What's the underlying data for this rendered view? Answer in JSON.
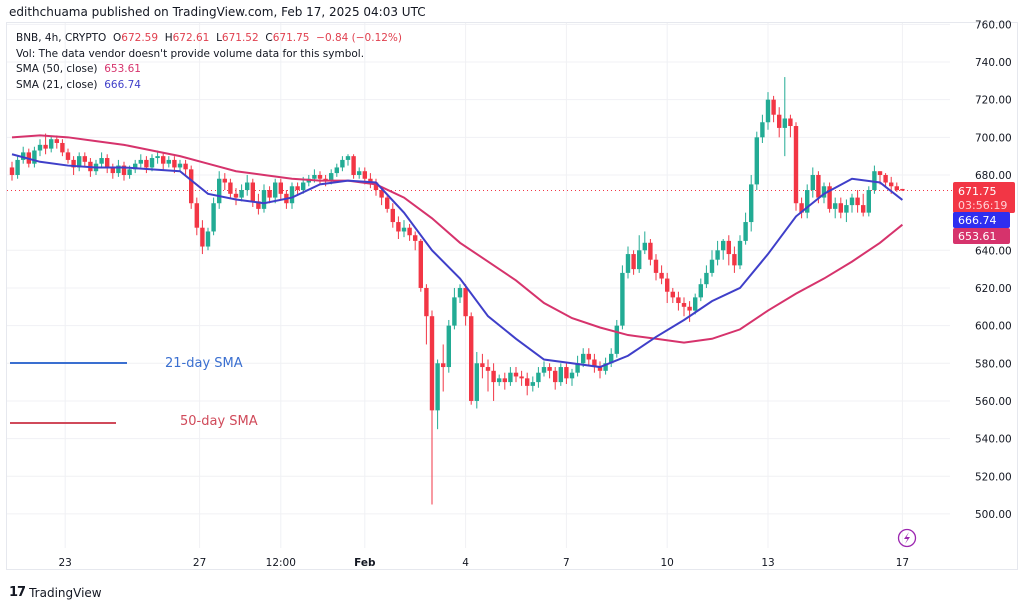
{
  "publisher_line": "edithchuama published on TradingView.com, Feb 17, 2025 04:03 UTC",
  "legend": {
    "symbol": "BNB, 4h, CRYPTO",
    "o_label": "O",
    "o_value": "672.59",
    "h_label": "H",
    "h_value": "672.61",
    "l_label": "L",
    "l_value": "671.52",
    "c_label": "C",
    "c_value": "671.75",
    "change": "−0.84 (−0.12%)",
    "vol_note": "Vol: The data vendor doesn't provide volume data for this symbol.",
    "sma50_label": "SMA (50, close)",
    "sma50_value": "653.61",
    "sma21_label": "SMA (21, close)",
    "sma21_value": "666.74"
  },
  "price_tags": {
    "last_price": "671.75",
    "countdown": "03:56:19",
    "sma21": "666.74",
    "sma50": "653.61"
  },
  "annotations": {
    "sma21_text": "21-day SMA",
    "sma50_text": "50-day SMA"
  },
  "footer": {
    "logo_text": "TradingView"
  },
  "colors": {
    "up": "#22ab94",
    "down": "#f23645",
    "sma21": "#3f3fc9",
    "sma50": "#d6336c",
    "ann21": "#3a6fd0",
    "ann50": "#d04a5a",
    "price_tag": "#f23645",
    "flash_icon": "#9c27b0"
  },
  "icons": {
    "flash": "lightning-icon",
    "logo": "tradingview-logo-icon"
  },
  "chart_data": {
    "type": "candlestick",
    "interval": "4h",
    "ylim": [
      490,
      760
    ],
    "y_ticks": [
      "760.00",
      "740.00",
      "720.00",
      "700.00",
      "680.00",
      "640.00",
      "620.00",
      "600.00",
      "580.00",
      "560.00",
      "540.00",
      "520.00",
      "500.00"
    ],
    "y_tick_values": [
      760,
      740,
      720,
      700,
      680,
      640,
      620,
      600,
      580,
      560,
      540,
      520,
      500
    ],
    "x_ticks": [
      "23",
      "27",
      "12:00",
      "Feb",
      "4",
      "7",
      "10",
      "13",
      "17"
    ],
    "x_tick_candle_index": [
      9.5,
      33.5,
      48,
      63,
      81,
      99,
      117,
      135,
      159
    ],
    "grid": true,
    "open": [
      684,
      680,
      688,
      692,
      686,
      693,
      696,
      694,
      699,
      697,
      692,
      688,
      684,
      690,
      687,
      682,
      686,
      689,
      684,
      681,
      685,
      680,
      683,
      686,
      688,
      684,
      689,
      690,
      686,
      688,
      684,
      686,
      683,
      665,
      652,
      642,
      650,
      665,
      678,
      676,
      670,
      668,
      672,
      676,
      666,
      662,
      672,
      668,
      676,
      670,
      665,
      674,
      672,
      676,
      678,
      680,
      678,
      677,
      681,
      684,
      688,
      690,
      680,
      682,
      678,
      676,
      672,
      668,
      662,
      655,
      650,
      652,
      648,
      645,
      620,
      605,
      555,
      580,
      578,
      600,
      615,
      620,
      605,
      560,
      580,
      578,
      576,
      570,
      572,
      570,
      575,
      573,
      572,
      568,
      570,
      575,
      578,
      576,
      570,
      578,
      572,
      575,
      580,
      585,
      582,
      578,
      576,
      580,
      585,
      600,
      628,
      638,
      630,
      640,
      644,
      635,
      628,
      625,
      618,
      615,
      612,
      610,
      608,
      615,
      622,
      628,
      635,
      640,
      645,
      638,
      632,
      645,
      655,
      675,
      700,
      708,
      720,
      712,
      705,
      710,
      706,
      665,
      660,
      672,
      680,
      668,
      674,
      662,
      665,
      660,
      664,
      668,
      664,
      660,
      672,
      682,
      680,
      676,
      674,
      672.59
    ],
    "high": [
      687,
      690,
      695,
      694,
      695,
      699,
      702,
      701,
      701,
      699,
      694,
      690,
      692,
      692,
      689,
      688,
      692,
      691,
      686,
      688,
      687,
      685,
      688,
      691,
      690,
      691,
      693,
      692,
      690,
      690,
      688,
      688,
      685,
      668,
      656,
      652,
      668,
      682,
      681,
      678,
      673,
      675,
      680,
      678,
      670,
      675,
      674,
      678,
      678,
      672,
      676,
      676,
      679,
      680,
      683,
      682,
      680,
      683,
      686,
      690,
      691,
      691,
      684,
      684,
      681,
      678,
      674,
      670,
      665,
      658,
      656,
      654,
      650,
      646,
      622,
      608,
      582,
      590,
      603,
      620,
      622,
      622,
      607,
      586,
      585,
      582,
      580,
      574,
      575,
      578,
      578,
      576,
      575,
      573,
      578,
      581,
      580,
      578,
      580,
      580,
      577,
      584,
      588,
      588,
      585,
      581,
      583,
      588,
      603,
      632,
      642,
      640,
      648,
      650,
      646,
      638,
      632,
      628,
      620,
      618,
      615,
      613,
      617,
      625,
      632,
      640,
      645,
      646,
      648,
      642,
      648,
      660,
      680,
      703,
      712,
      724,
      722,
      716,
      732,
      712,
      708,
      668,
      675,
      684,
      682,
      676,
      676,
      668,
      668,
      667,
      670,
      672,
      670,
      674,
      685,
      682,
      681,
      679,
      676,
      672.61
    ],
    "low": [
      677,
      678,
      686,
      684,
      684,
      690,
      691,
      692,
      694,
      690,
      686,
      680,
      682,
      684,
      679,
      680,
      684,
      681,
      678,
      679,
      677,
      678,
      681,
      684,
      681,
      682,
      686,
      683,
      684,
      681,
      682,
      680,
      662,
      648,
      638,
      640,
      648,
      662,
      672,
      668,
      664,
      666,
      669,
      663,
      659,
      660,
      665,
      665,
      667,
      662,
      662,
      669,
      670,
      674,
      676,
      675,
      674,
      675,
      679,
      682,
      685,
      678,
      678,
      675,
      673,
      669,
      664,
      660,
      652,
      646,
      647,
      645,
      640,
      618,
      590,
      505,
      545,
      565,
      575,
      598,
      612,
      600,
      558,
      556,
      572,
      565,
      560,
      568,
      566,
      568,
      570,
      568,
      563,
      565,
      567,
      573,
      572,
      566,
      568,
      569,
      568,
      573,
      578,
      579,
      575,
      572,
      574,
      578,
      583,
      598,
      625,
      627,
      628,
      638,
      632,
      624,
      622,
      612,
      612,
      608,
      605,
      602,
      606,
      613,
      620,
      626,
      632,
      635,
      632,
      628,
      630,
      643,
      650,
      672,
      697,
      704,
      708,
      700,
      690,
      700,
      661,
      657,
      657,
      668,
      665,
      665,
      660,
      657,
      657,
      655,
      660,
      660,
      658,
      658,
      670,
      675,
      674,
      670,
      671,
      671.52
    ],
    "close": [
      680,
      688,
      692,
      686,
      693,
      696,
      694,
      699,
      697,
      692,
      688,
      684,
      690,
      687,
      682,
      686,
      689,
      684,
      681,
      685,
      680,
      683,
      686,
      688,
      684,
      689,
      690,
      686,
      688,
      684,
      686,
      683,
      665,
      652,
      642,
      650,
      665,
      678,
      676,
      670,
      668,
      672,
      676,
      666,
      662,
      672,
      668,
      676,
      670,
      665,
      674,
      672,
      676,
      678,
      680,
      678,
      677,
      681,
      684,
      688,
      690,
      680,
      682,
      678,
      676,
      672,
      668,
      662,
      655,
      650,
      652,
      648,
      645,
      620,
      605,
      555,
      580,
      578,
      600,
      615,
      620,
      605,
      560,
      580,
      578,
      576,
      570,
      572,
      570,
      575,
      573,
      572,
      568,
      570,
      575,
      578,
      576,
      570,
      578,
      572,
      575,
      580,
      585,
      582,
      578,
      576,
      580,
      585,
      600,
      628,
      638,
      630,
      640,
      644,
      635,
      628,
      625,
      618,
      615,
      612,
      610,
      608,
      615,
      622,
      628,
      635,
      640,
      645,
      638,
      632,
      645,
      655,
      675,
      700,
      708,
      720,
      712,
      705,
      710,
      706,
      665,
      660,
      672,
      680,
      668,
      674,
      662,
      665,
      660,
      664,
      668,
      664,
      660,
      672,
      682,
      680,
      676,
      674,
      672,
      671.75
    ],
    "sma_sample_index": [
      0,
      5,
      10,
      15,
      20,
      25,
      30,
      35,
      40,
      45,
      50,
      55,
      60,
      65,
      70,
      75,
      80,
      85,
      90,
      95,
      100,
      105,
      110,
      115,
      120,
      125,
      130,
      135,
      140,
      145,
      150,
      155,
      159
    ],
    "series": [
      {
        "name": "SMA (21, close)",
        "values": [
          691,
          687,
          685,
          684,
          684,
          683,
          682,
          670,
          667,
          665,
          668,
          675,
          677,
          676,
          660,
          640,
          625,
          605,
          593,
          582,
          580,
          578,
          584,
          594,
          603,
          613,
          620,
          638,
          658,
          670,
          678,
          676,
          666.74
        ]
      },
      {
        "name": "SMA (50, close)",
        "values": [
          700,
          701,
          700,
          698,
          696,
          693,
          690,
          686,
          682,
          680,
          678,
          677,
          677,
          675,
          668,
          657,
          644,
          634,
          624,
          612,
          604,
          599,
          595,
          593,
          591,
          593,
          598,
          608,
          617,
          625,
          634,
          644,
          653.61
        ]
      }
    ],
    "last_price": 671.75
  }
}
